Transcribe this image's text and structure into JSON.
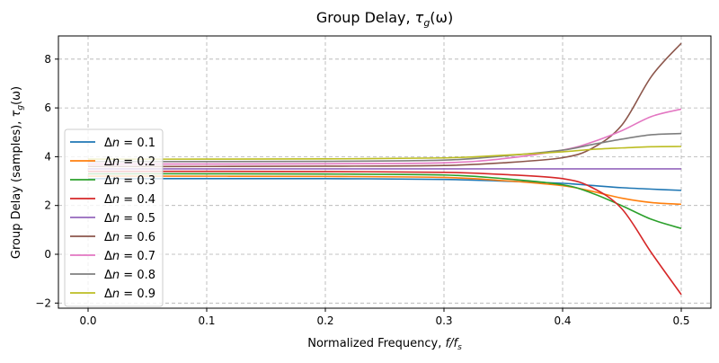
{
  "chart_data": {
    "type": "line",
    "title": "Group Delay, τ_g(ω)",
    "title_parts": {
      "main": "Group Delay, ",
      "sym": "τ",
      "sub": "g",
      "arg": "(ω)"
    },
    "xlabel": "Normalized Frequency, f/f_s",
    "xlabel_parts": {
      "main": "Normalized Frequency, ",
      "f": "f/f",
      "sub": "s"
    },
    "ylabel": "Group Delay (samples), τ_g(ω)",
    "ylabel_parts": {
      "main": "Group Delay (samples), ",
      "sym": "τ",
      "sub": "g",
      "arg": "(ω)"
    },
    "xlim": [
      -0.025,
      0.525
    ],
    "ylim": [
      -2.21,
      8.95
    ],
    "xticks": [
      "0.0",
      "0.1",
      "0.2",
      "0.3",
      "0.4",
      "0.5"
    ],
    "xtick_values": [
      0,
      0.1,
      0.2,
      0.3,
      0.4,
      0.5
    ],
    "yticks": [
      "−2",
      "0",
      "2",
      "4",
      "6",
      "8"
    ],
    "ytick_values": [
      -2,
      0,
      2,
      4,
      6,
      8
    ],
    "grid": true,
    "legend_placement": "center-left",
    "x": [
      0,
      0.1,
      0.2,
      0.3,
      0.35,
      0.4,
      0.425,
      0.45,
      0.475,
      0.5
    ],
    "series": [
      {
        "name": "Δn = 0.1",
        "label_value": "0.1",
        "color": "#1f77b4",
        "values": [
          3.1,
          3.1,
          3.1,
          3.07,
          3.0,
          2.91,
          2.82,
          2.73,
          2.67,
          2.62
        ]
      },
      {
        "name": "Δn = 0.2",
        "label_value": "0.2",
        "color": "#ff7f0e",
        "values": [
          3.2,
          3.2,
          3.19,
          3.15,
          3.02,
          2.81,
          2.58,
          2.3,
          2.12,
          2.05
        ]
      },
      {
        "name": "Δn = 0.3",
        "label_value": "0.3",
        "color": "#2ca02c",
        "values": [
          3.3,
          3.3,
          3.29,
          3.25,
          3.1,
          2.85,
          2.5,
          1.99,
          1.43,
          1.06
        ]
      },
      {
        "name": "Δn = 0.4",
        "label_value": "0.4",
        "color": "#d62728",
        "values": [
          3.4,
          3.4,
          3.39,
          3.36,
          3.27,
          3.1,
          2.73,
          1.86,
          0.05,
          -1.65
        ]
      },
      {
        "name": "Δn = 0.5",
        "label_value": "0.5",
        "color": "#9467bd",
        "values": [
          3.5,
          3.5,
          3.5,
          3.5,
          3.5,
          3.5,
          3.5,
          3.5,
          3.5,
          3.5
        ]
      },
      {
        "name": "Δn = 0.6",
        "label_value": "0.6",
        "color": "#8c564b",
        "values": [
          3.6,
          3.6,
          3.61,
          3.64,
          3.75,
          3.96,
          4.35,
          5.3,
          7.3,
          8.65
        ]
      },
      {
        "name": "Δn = 0.7",
        "label_value": "0.7",
        "color": "#e377c2",
        "values": [
          3.7,
          3.7,
          3.71,
          3.75,
          3.92,
          4.27,
          4.6,
          5.07,
          5.65,
          5.95
        ]
      },
      {
        "name": "Δn = 0.8",
        "label_value": "0.8",
        "color": "#7f7f7f",
        "values": [
          3.8,
          3.8,
          3.81,
          3.86,
          4.03,
          4.27,
          4.5,
          4.72,
          4.9,
          4.95
        ]
      },
      {
        "name": "Δn = 0.9",
        "label_value": "0.9",
        "color": "#bcbd22",
        "values": [
          3.9,
          3.9,
          3.91,
          3.95,
          4.06,
          4.2,
          4.3,
          4.36,
          4.41,
          4.42
        ]
      }
    ]
  }
}
